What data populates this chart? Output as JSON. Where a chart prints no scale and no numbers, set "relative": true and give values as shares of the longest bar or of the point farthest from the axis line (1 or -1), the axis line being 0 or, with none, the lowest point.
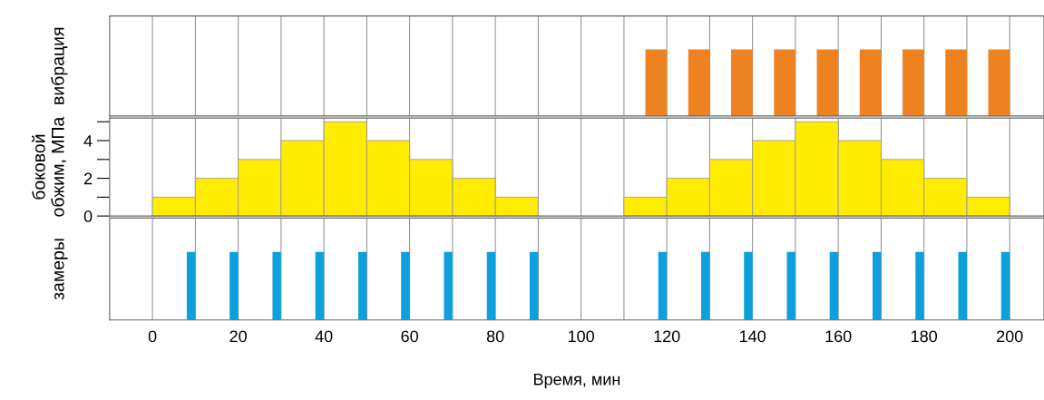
{
  "chart_data": [
    {
      "type": "bar",
      "ylabel": "вибрация",
      "relative": true,
      "x": [
        117.5,
        127.5,
        137.5,
        147.5,
        157.5,
        167.5,
        177.5,
        187.5,
        197.5
      ],
      "values": [
        1,
        1,
        1,
        1,
        1,
        1,
        1,
        1,
        1
      ],
      "color": "#ee8220",
      "xlim": [
        -10,
        208
      ],
      "xticks": [
        0,
        {
          "value": 10,
          "label": null
        },
        20,
        {
          "value": 30,
          "label": null
        },
        40,
        {
          "value": 50,
          "label": null
        },
        60,
        {
          "value": 70,
          "label": null
        },
        80,
        {
          "value": 90,
          "label": null
        },
        100,
        {
          "value": 110,
          "label": null
        },
        120,
        {
          "value": 130,
          "label": null
        },
        140,
        {
          "value": 150,
          "label": null
        },
        160,
        {
          "value": 170,
          "label": null
        },
        180,
        {
          "value": 190,
          "label": null
        },
        200
      ],
      "grid": "x",
      "tick_labels": false
    },
    {
      "type": "histogram",
      "ylabel": "боковой\nобжим, МПа",
      "bins": [
        0,
        10,
        20,
        30,
        40,
        50,
        60,
        70,
        80,
        90,
        100,
        110,
        120,
        130,
        140,
        150,
        160,
        170,
        180,
        190,
        200
      ],
      "values": [
        1,
        2,
        3,
        4,
        5,
        4,
        3,
        2,
        1,
        0,
        0,
        1,
        2,
        3,
        4,
        5,
        4,
        3,
        2,
        1
      ],
      "color": "#ffec00",
      "xlim": [
        -10,
        208
      ],
      "ylim": [
        0,
        5.2
      ],
      "xticks": [
        0,
        {
          "value": 10,
          "label": null
        },
        20,
        {
          "value": 30,
          "label": null
        },
        40,
        {
          "value": 50,
          "label": null
        },
        60,
        {
          "value": 70,
          "label": null
        },
        80,
        {
          "value": 90,
          "label": null
        },
        100,
        {
          "value": 110,
          "label": null
        },
        120,
        {
          "value": 130,
          "label": null
        },
        140,
        {
          "value": 150,
          "label": null
        },
        160,
        {
          "value": 170,
          "label": null
        },
        180,
        {
          "value": 190,
          "label": null
        },
        200
      ],
      "yticks": [
        0,
        {
          "value": 1,
          "label": null
        },
        2,
        {
          "value": 3,
          "label": null
        },
        4,
        {
          "value": 5,
          "label": null
        }
      ],
      "grid": "x",
      "tick_labels": "y"
    },
    {
      "type": "bar",
      "ylabel": "замеры",
      "xlabel": "Время, мин",
      "relative": true,
      "x": [
        9,
        19,
        29,
        39,
        49,
        59,
        69,
        79,
        89,
        119,
        129,
        139,
        149,
        159,
        169,
        179,
        189,
        199
      ],
      "values": [
        1,
        1,
        1,
        1,
        1,
        1,
        1,
        1,
        1,
        1,
        1,
        1,
        1,
        1,
        1,
        1,
        1,
        1
      ],
      "color": "#0da0dc",
      "xlim": [
        -10,
        208
      ],
      "xticks": [
        0,
        {
          "value": 10,
          "label": null
        },
        20,
        {
          "value": 30,
          "label": null
        },
        40,
        {
          "value": 50,
          "label": null
        },
        60,
        {
          "value": 70,
          "label": null
        },
        80,
        {
          "value": 90,
          "label": null
        },
        100,
        {
          "value": 110,
          "label": null
        },
        120,
        {
          "value": 130,
          "label": null
        },
        140,
        {
          "value": 150,
          "label": null
        },
        160,
        {
          "value": 170,
          "label": null
        },
        180,
        {
          "value": 190,
          "label": null
        },
        200
      ],
      "grid": "x",
      "tick_labels": "x"
    }
  ]
}
